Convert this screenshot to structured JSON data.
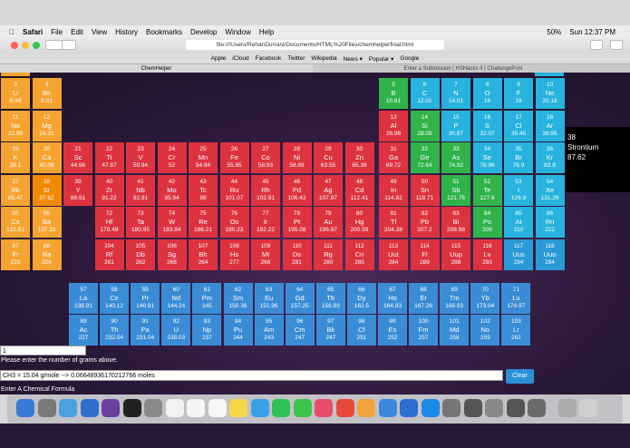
{
  "menu_bar": {
    "app": "Safari",
    "items": [
      "File",
      "Edit",
      "View",
      "History",
      "Bookmarks",
      "Develop",
      "Window",
      "Help"
    ],
    "battery": "50%",
    "clock": "Sun 12:37 PM"
  },
  "browser": {
    "url": "file:///Users/RehanDurrani/Documents/HTML%20Files/chemhelperfinal.html",
    "bookmarks": [
      "Apple",
      "iCloud",
      "Facebook",
      "Twitter",
      "Wikipedia",
      "News ▾",
      "Popular ▾",
      "Google"
    ],
    "tabs": [
      "ChemHelper",
      "Enter a Submission | HSHacks II | ChallengePost"
    ]
  },
  "periodic_table": {
    "rows": [
      [
        {
          "number": 3,
          "symbol": "Li",
          "weight": 6.94
        },
        {
          "number": 4,
          "symbol": "Be",
          "weight": 9.01
        },
        null,
        null,
        null,
        null,
        null,
        null,
        null,
        null,
        null,
        null,
        {
          "number": 5,
          "symbol": "B",
          "weight": 10.81
        },
        {
          "number": 6,
          "symbol": "C",
          "weight": 12.01
        },
        {
          "number": 7,
          "symbol": "N",
          "weight": 14.01
        },
        {
          "number": 8,
          "symbol": "O",
          "weight": 16
        },
        {
          "number": 9,
          "symbol": "F",
          "weight": 19
        },
        {
          "number": 10,
          "symbol": "Ne",
          "weight": 20.18
        }
      ],
      [
        {
          "number": 11,
          "symbol": "Na",
          "weight": 22.99
        },
        {
          "number": 12,
          "symbol": "Mg",
          "weight": 24.31
        },
        null,
        null,
        null,
        null,
        null,
        null,
        null,
        null,
        null,
        null,
        {
          "number": 13,
          "symbol": "Al",
          "weight": 26.98
        },
        {
          "number": 14,
          "symbol": "Si",
          "weight": 28.09
        },
        {
          "number": 15,
          "symbol": "P",
          "weight": 30.97
        },
        {
          "number": 16,
          "symbol": "S",
          "weight": 32.07
        },
        {
          "number": 17,
          "symbol": "Cl",
          "weight": 35.45
        },
        {
          "number": 18,
          "symbol": "Ar",
          "weight": 39.95
        }
      ],
      [
        {
          "number": 19,
          "symbol": "K",
          "weight": 39.1
        },
        {
          "number": 20,
          "symbol": "Ca",
          "weight": 40.08
        },
        {
          "number": 21,
          "symbol": "Sc",
          "weight": 44.96
        },
        {
          "number": 22,
          "symbol": "Ti",
          "weight": 47.87
        },
        {
          "number": 23,
          "symbol": "V",
          "weight": 50.94
        },
        {
          "number": 24,
          "symbol": "Cr",
          "weight": 52
        },
        {
          "number": 25,
          "symbol": "Mn",
          "weight": 54.94
        },
        {
          "number": 26,
          "symbol": "Fe",
          "weight": 55.85
        },
        {
          "number": 27,
          "symbol": "Co",
          "weight": 58.93
        },
        {
          "number": 28,
          "symbol": "Ni",
          "weight": 58.69
        },
        {
          "number": 29,
          "symbol": "Cu",
          "weight": 63.55
        },
        {
          "number": 30,
          "symbol": "Zn",
          "weight": 65.39
        },
        {
          "number": 31,
          "symbol": "Ga",
          "weight": 69.72
        },
        {
          "number": 32,
          "symbol": "Ge",
          "weight": 72.64
        },
        {
          "number": 33,
          "symbol": "As",
          "weight": 74.92
        },
        {
          "number": 34,
          "symbol": "Se",
          "weight": 78.96
        },
        {
          "number": 35,
          "symbol": "Br",
          "weight": 79.9
        },
        {
          "number": 36,
          "symbol": "Kr",
          "weight": 83.8
        }
      ],
      [
        {
          "number": 37,
          "symbol": "Rb",
          "weight": 85.47
        },
        {
          "number": 38,
          "symbol": "Sr",
          "weight": 87.62
        },
        {
          "number": 39,
          "symbol": "Y",
          "weight": 88.91
        },
        {
          "number": 40,
          "symbol": "Zr",
          "weight": 91.22
        },
        {
          "number": 41,
          "symbol": "Nb",
          "weight": 92.91
        },
        {
          "number": 42,
          "symbol": "Mo",
          "weight": 95.94
        },
        {
          "number": 43,
          "symbol": "Tc",
          "weight": 98
        },
        {
          "number": 44,
          "symbol": "Ru",
          "weight": 101.07
        },
        {
          "number": 45,
          "symbol": "Rh",
          "weight": 102.91
        },
        {
          "number": 46,
          "symbol": "Pd",
          "weight": 106.42
        },
        {
          "number": 47,
          "symbol": "Ag",
          "weight": 107.87
        },
        {
          "number": 48,
          "symbol": "Cd",
          "weight": 112.41
        },
        {
          "number": 49,
          "symbol": "In",
          "weight": 114.82
        },
        {
          "number": 50,
          "symbol": "Sn",
          "weight": 118.71
        },
        {
          "number": 51,
          "symbol": "Sb",
          "weight": 121.76
        },
        {
          "number": 52,
          "symbol": "Te",
          "weight": 127.6
        },
        {
          "number": 53,
          "symbol": "I",
          "weight": 126.9
        },
        {
          "number": 54,
          "symbol": "Xe",
          "weight": 131.29
        }
      ],
      [
        {
          "number": 55,
          "symbol": "Cs",
          "weight": 132.91
        },
        {
          "number": 56,
          "symbol": "Ba",
          "weight": 137.33
        },
        null,
        {
          "number": 72,
          "symbol": "Hf",
          "weight": 178.49
        },
        {
          "number": 73,
          "symbol": "Ta",
          "weight": 180.95
        },
        {
          "number": 74,
          "symbol": "W",
          "weight": 183.84
        },
        {
          "number": 75,
          "symbol": "Re",
          "weight": 186.21
        },
        {
          "number": 76,
          "symbol": "Os",
          "weight": 190.23
        },
        {
          "number": 77,
          "symbol": "Ir",
          "weight": 192.22
        },
        {
          "number": 78,
          "symbol": "Pt",
          "weight": 195.08
        },
        {
          "number": 79,
          "symbol": "Au",
          "weight": 196.97
        },
        {
          "number": 80,
          "symbol": "Hg",
          "weight": 200.59
        },
        {
          "number": 81,
          "symbol": "Tl",
          "weight": 204.38
        },
        {
          "number": 82,
          "symbol": "Pb",
          "weight": 207.2
        },
        {
          "number": 83,
          "symbol": "Bi",
          "weight": 208.98
        },
        {
          "number": 84,
          "symbol": "Po",
          "weight": 209
        },
        {
          "number": 85,
          "symbol": "At",
          "weight": 210
        },
        {
          "number": 86,
          "symbol": "Rn",
          "weight": 222
        }
      ],
      [
        {
          "number": 87,
          "symbol": "Fr",
          "weight": 223
        },
        {
          "number": 88,
          "symbol": "Ra",
          "weight": 226
        },
        null,
        {
          "number": 104,
          "symbol": "Rf",
          "weight": 261
        },
        {
          "number": 105,
          "symbol": "Db",
          "weight": 262
        },
        {
          "number": 106,
          "symbol": "Sg",
          "weight": 266
        },
        {
          "number": 107,
          "symbol": "Bh",
          "weight": 264
        },
        {
          "number": 108,
          "symbol": "Hs",
          "weight": 277
        },
        {
          "number": 109,
          "symbol": "Mt",
          "weight": 268
        },
        {
          "number": 110,
          "symbol": "Ds",
          "weight": 281
        },
        {
          "number": 111,
          "symbol": "Rg",
          "weight": 280
        },
        {
          "number": 112,
          "symbol": "Cn",
          "weight": 285
        },
        {
          "number": 113,
          "symbol": "Uut",
          "weight": 284
        },
        {
          "number": 114,
          "symbol": "Fl",
          "weight": 289
        },
        {
          "number": 115,
          "symbol": "Uup",
          "weight": 288
        },
        {
          "number": 116,
          "symbol": "Lv",
          "weight": 293
        },
        {
          "number": 117,
          "symbol": "Uus",
          "weight": 294
        },
        {
          "number": 118,
          "symbol": "Uuo",
          "weight": 294
        }
      ]
    ],
    "lanthanides": [
      {
        "number": 57,
        "symbol": "La",
        "weight": 138.91
      },
      {
        "number": 58,
        "symbol": "Ce",
        "weight": 140.12
      },
      {
        "number": 59,
        "symbol": "Pr",
        "weight": 140.91
      },
      {
        "number": 60,
        "symbol": "Nd",
        "weight": 144.24
      },
      {
        "number": 61,
        "symbol": "Pm",
        "weight": 145
      },
      {
        "number": 62,
        "symbol": "Sm",
        "weight": 150.36
      },
      {
        "number": 63,
        "symbol": "Eu",
        "weight": 151.96
      },
      {
        "number": 64,
        "symbol": "Gd",
        "weight": 157.25
      },
      {
        "number": 65,
        "symbol": "Tb",
        "weight": 158.93
      },
      {
        "number": 66,
        "symbol": "Dy",
        "weight": 162.5
      },
      {
        "number": 67,
        "symbol": "Ho",
        "weight": 164.93
      },
      {
        "number": 68,
        "symbol": "Er",
        "weight": 167.26
      },
      {
        "number": 69,
        "symbol": "Tm",
        "weight": 168.93
      },
      {
        "number": 70,
        "symbol": "Yb",
        "weight": 173.04
      },
      {
        "number": 71,
        "symbol": "Lu",
        "weight": 174.97
      }
    ],
    "actinides": [
      {
        "number": 89,
        "symbol": "Ac",
        "weight": 227
      },
      {
        "number": 90,
        "symbol": "Th",
        "weight": 232.04
      },
      {
        "number": 91,
        "symbol": "Pa",
        "weight": 231.04
      },
      {
        "number": 92,
        "symbol": "U",
        "weight": 238.03
      },
      {
        "number": 93,
        "symbol": "Np",
        "weight": 237
      },
      {
        "number": 94,
        "symbol": "Pu",
        "weight": 244
      },
      {
        "number": 95,
        "symbol": "Am",
        "weight": 243
      },
      {
        "number": 96,
        "symbol": "Cm",
        "weight": 247
      },
      {
        "number": 97,
        "symbol": "Bk",
        "weight": 247
      },
      {
        "number": 98,
        "symbol": "Cf",
        "weight": 251
      },
      {
        "number": 99,
        "symbol": "Es",
        "weight": 252
      },
      {
        "number": 100,
        "symbol": "Fm",
        "weight": 257
      },
      {
        "number": 101,
        "symbol": "Md",
        "weight": 258
      },
      {
        "number": 102,
        "symbol": "No",
        "weight": 259
      },
      {
        "number": 103,
        "symbol": "Lr",
        "weight": 262
      }
    ]
  },
  "selected": {
    "number": 38,
    "name": "Strontium",
    "weight": 87.62
  },
  "calculator": {
    "grams": "1",
    "grams_prompt": "Please enter the number of grams above.",
    "result": "CH3 = 15.04 g/mole --> 0.06648936170212766 moles",
    "clear_button": "Clear",
    "formula_prompt": "Enter A Chemical Formula"
  }
}
